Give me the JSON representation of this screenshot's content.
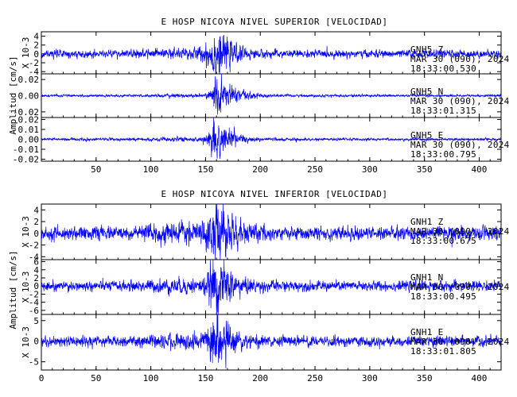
{
  "chart_data": [
    {
      "type": "line",
      "title": "E HOSP NICOYA NIVEL SUPERIOR [VELOCIDAD]",
      "ylabel": "Amplitud [cm/s]",
      "xlim": [
        0,
        420
      ],
      "xticks": [
        50,
        100,
        150,
        200,
        250,
        300,
        350,
        400
      ],
      "color": "#0000ff",
      "grid": false,
      "traces": [
        {
          "multiplier": "X 10-3",
          "ylim": [
            -4.5,
            5
          ],
          "yticks": [
            4,
            2,
            0,
            -2,
            -4
          ],
          "yticklabels": [
            "4",
            "2",
            "0",
            "-2",
            "-4"
          ],
          "noise": 0.7,
          "burst_peak": 4.2,
          "burst_center": 163,
          "burst_width": 8,
          "burst_decay": 10,
          "station": "GNH5   Z",
          "date": "MAR 30 (090), 2024",
          "time": "18:33:00.530"
        },
        {
          "multiplier": "",
          "ylim": [
            -0.027,
            0.027
          ],
          "yticks": [
            0.02,
            0.0,
            -0.02
          ],
          "yticklabels": [
            "0.02",
            "0.00",
            "-0.02"
          ],
          "noise": 0.0012,
          "burst_peak": 0.022,
          "burst_center": 165,
          "burst_width": 6,
          "burst_decay": 12,
          "station": "GNH5   N",
          "date": "MAR 30 (090), 2024",
          "time": "18:33:01.315"
        },
        {
          "multiplier": "",
          "ylim": [
            -0.022,
            0.022
          ],
          "yticks": [
            0.02,
            0.01,
            0.0,
            -0.01,
            -0.02
          ],
          "yticklabels": [
            "0.02",
            "0.01",
            "0.00",
            "-0.01",
            "-0.02"
          ],
          "noise": 0.0011,
          "burst_peak": 0.02,
          "burst_center": 162,
          "burst_width": 6,
          "burst_decay": 10,
          "station": "GNH5   E",
          "date": "MAR 30 (090), 2024",
          "time": "18:33:00.795"
        }
      ]
    },
    {
      "type": "line",
      "title": "E HOSP NICOYA NIVEL INFERIOR [VELOCIDAD]",
      "ylabel": "Amplitud [cm/s]",
      "xlim": [
        0,
        420
      ],
      "xticks": [
        0,
        50,
        100,
        150,
        200,
        250,
        300,
        350,
        400
      ],
      "color": "#0000ff",
      "grid": false,
      "traces": [
        {
          "multiplier": "X 10-3",
          "ylim": [
            -4.5,
            5
          ],
          "yticks": [
            4,
            2,
            0,
            -2,
            -4
          ],
          "yticklabels": [
            "4",
            "2",
            "0",
            "-2",
            "-4"
          ],
          "noise": 0.9,
          "burst_peak": 4.5,
          "burst_center": 163,
          "burst_width": 7,
          "burst_decay": 12,
          "station": "GNH1   Z",
          "date": "MAR 30 (090), 2024",
          "time": "18:33:00.675"
        },
        {
          "multiplier": "X 10-3",
          "ylim": [
            -7,
            6.5
          ],
          "yticks": [
            6,
            4,
            2,
            0,
            -2,
            -4,
            -6
          ],
          "yticklabels": [
            "6",
            "4",
            "2",
            "0",
            "-2",
            "-4",
            "-6"
          ],
          "noise": 1.0,
          "burst_peak": 5.5,
          "burst_center": 162,
          "burst_width": 6,
          "burst_decay": 12,
          "station": "GNH1   N",
          "date": "MAR 30 (090), 2024",
          "time": "18:33:00.495"
        },
        {
          "multiplier": "X 10-3",
          "ylim": [
            -7,
            6.5
          ],
          "yticks": [
            5,
            0,
            -5
          ],
          "yticklabels": [
            "5",
            "0",
            "-5"
          ],
          "noise": 1.0,
          "burst_peak": 5.5,
          "burst_center": 162,
          "burst_width": 6,
          "burst_decay": 12,
          "station": "GNH1   E",
          "date": "MAR 30 (090), 2024",
          "time": "18:33:01.805"
        }
      ]
    }
  ]
}
